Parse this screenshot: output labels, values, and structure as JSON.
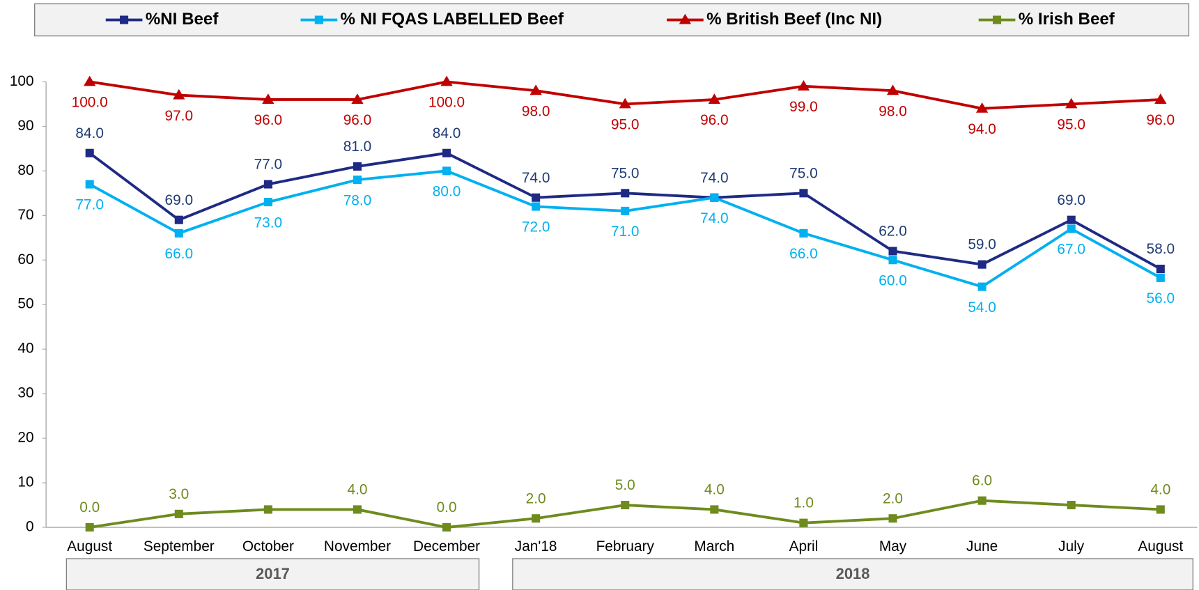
{
  "chart_data": {
    "type": "line",
    "categories": [
      "August",
      "September",
      "October",
      "November",
      "December",
      "Jan'18",
      "February",
      "March",
      "April",
      "May",
      "June",
      "July",
      "August"
    ],
    "groups": [
      {
        "label": "2017",
        "span": 5
      },
      {
        "label": "2018",
        "span": 8
      }
    ],
    "ylim": [
      0,
      100
    ],
    "yticks": [
      0,
      10,
      20,
      30,
      40,
      50,
      60,
      70,
      80,
      90,
      100
    ],
    "grid": false,
    "legend": "top",
    "series": [
      {
        "name": "%NI Beef",
        "color": "#1f2a85",
        "label_color": "#1f3b73",
        "marker": "square",
        "label_position": "above",
        "values": [
          84,
          69,
          77,
          81,
          84,
          74,
          75,
          74,
          75,
          62,
          59,
          69,
          58
        ],
        "value_labels": [
          "84.0",
          "69.0",
          "77.0",
          "81.0",
          "84.0",
          "74.0",
          "75.0",
          "74.0",
          "75.0",
          "62.0",
          "59.0",
          "69.0",
          "58.0"
        ]
      },
      {
        "name": "% NI FQAS LABELLED Beef",
        "color": "#00b0f0",
        "label_color": "#00b0f0",
        "marker": "square",
        "label_position": "below",
        "values": [
          77,
          66,
          73,
          78,
          80,
          72,
          71,
          74,
          66,
          60,
          54,
          67,
          56
        ],
        "value_labels": [
          "77.0",
          "66.0",
          "73.0",
          "78.0",
          "80.0",
          "72.0",
          "71.0",
          "74.0",
          "66.0",
          "60.0",
          "54.0",
          "67.0",
          "56.0"
        ]
      },
      {
        "name": "% British Beef (Inc NI)",
        "color": "#c00000",
        "label_color": "#c00000",
        "marker": "triangle",
        "label_position": "below",
        "values": [
          100,
          97,
          96,
          96,
          100,
          98,
          95,
          96,
          99,
          98,
          94,
          95,
          96
        ],
        "value_labels": [
          "100.0",
          "97.0",
          "96.0",
          "96.0",
          "100.0",
          "98.0",
          "95.0",
          "96.0",
          "99.0",
          "98.0",
          "94.0",
          "95.0",
          "96.0"
        ]
      },
      {
        "name": "% Irish Beef",
        "color": "#6e8b1e",
        "label_color": "#6e8b1e",
        "marker": "square",
        "label_position": "above",
        "values": [
          0,
          3,
          4,
          4,
          0,
          2,
          5,
          4,
          1,
          2,
          6,
          5,
          4
        ],
        "value_labels": [
          "0.0",
          "3.0",
          null,
          "4.0",
          "0.0",
          "2.0",
          "5.0",
          "4.0",
          "1.0",
          "2.0",
          "6.0",
          null,
          "4.0"
        ]
      }
    ]
  }
}
